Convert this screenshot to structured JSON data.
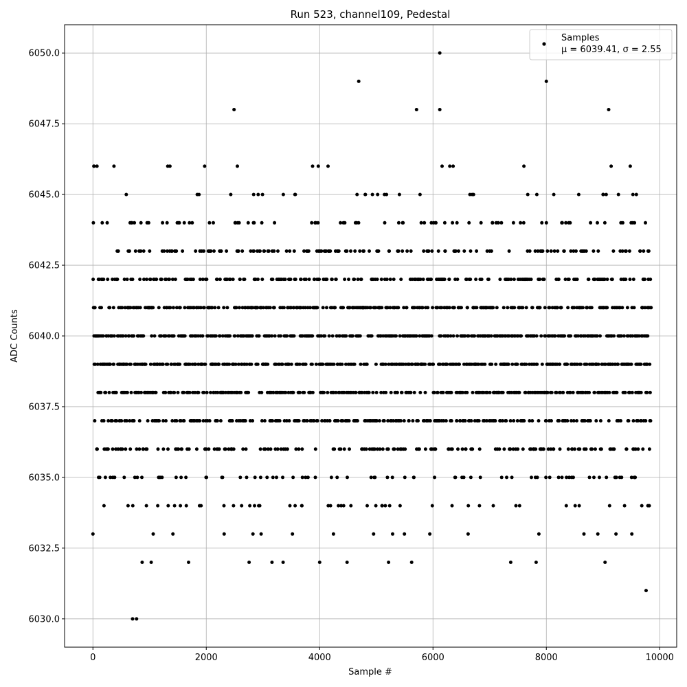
{
  "chart_data": {
    "type": "scatter",
    "title": "Run 523, channel109, Pedestal",
    "xlabel": "Sample #",
    "ylabel": "ADC Counts",
    "xlim": [
      -500,
      10300
    ],
    "ylim": [
      6029,
      6051
    ],
    "x_ticks": [
      0,
      2000,
      4000,
      6000,
      8000,
      10000
    ],
    "x_tick_labels": [
      "0",
      "2000",
      "4000",
      "6000",
      "8000",
      "10000"
    ],
    "y_ticks": [
      6030.0,
      6032.5,
      6035.0,
      6037.5,
      6040.0,
      6042.5,
      6045.0,
      6047.5,
      6050.0
    ],
    "y_tick_labels": [
      "6030.0",
      "6032.5",
      "6035.0",
      "6037.5",
      "6040.0",
      "6042.5",
      "6045.0",
      "6047.5",
      "6050.0"
    ],
    "grid": true,
    "legend_position": "top-right",
    "marker_color": "#000000",
    "series": [
      {
        "name": "Samples",
        "stats_label": "μ = 6039.41, σ = 2.55",
        "mean": 6039.41,
        "std": 2.55,
        "n_samples": 9850,
        "x_range": [
          0,
          9850
        ],
        "level_values": [
          6030,
          6031,
          6032,
          6033,
          6034,
          6035,
          6036,
          6037,
          6038,
          6039,
          6040,
          6041,
          6042,
          6043,
          6044,
          6045,
          6046,
          6047,
          6048,
          6049,
          6050
        ],
        "notable_points": [
          {
            "x": 6120,
            "y": 6050
          },
          {
            "x": 4690,
            "y": 6049
          },
          {
            "x": 8000,
            "y": 6049
          },
          {
            "x": 2490,
            "y": 6048
          },
          {
            "x": 5710,
            "y": 6048
          },
          {
            "x": 6120,
            "y": 6048
          },
          {
            "x": 9100,
            "y": 6048
          },
          {
            "x": 700,
            "y": 6030
          },
          {
            "x": 770,
            "y": 6030
          },
          {
            "x": 9760,
            "y": 6031
          },
          {
            "x": 20,
            "y": 6046
          }
        ]
      }
    ]
  }
}
